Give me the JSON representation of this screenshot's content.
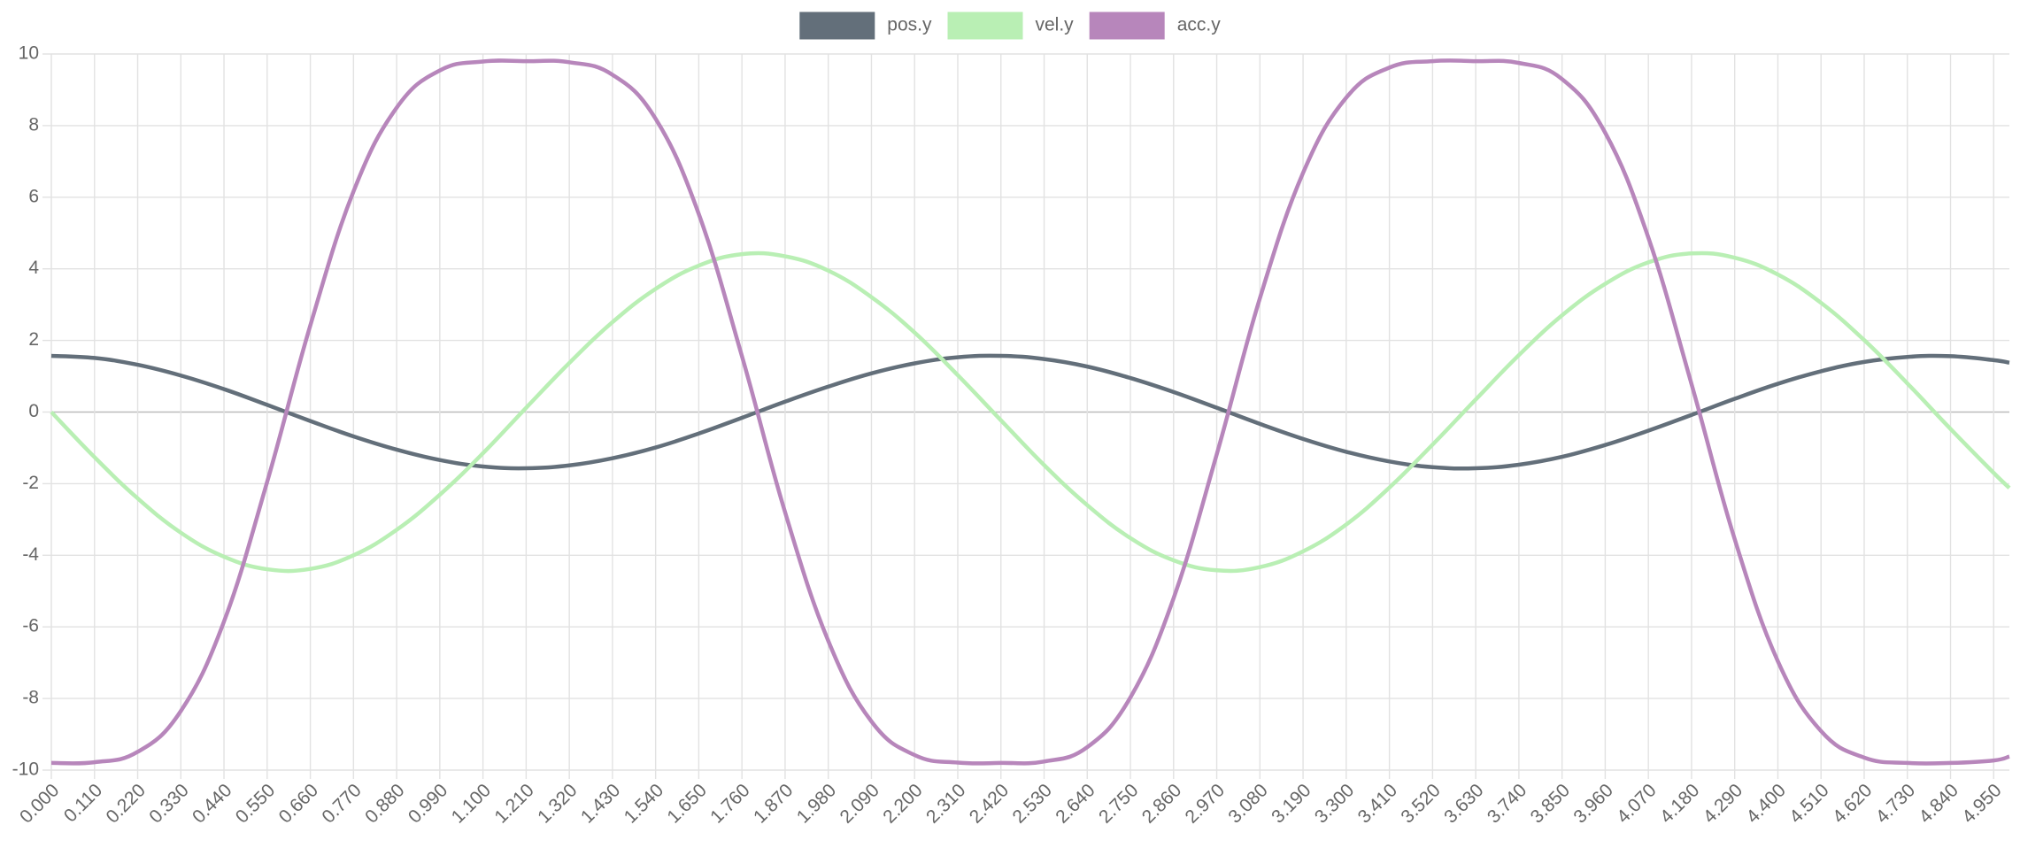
{
  "chart_data": {
    "type": "line",
    "legend": "top",
    "grid": true,
    "x": [
      0,
      0.11,
      0.22,
      0.33,
      0.44,
      0.55,
      0.66,
      0.77,
      0.88,
      0.99,
      1.1,
      1.21,
      1.32,
      1.43,
      1.54,
      1.65,
      1.76,
      1.87,
      1.98,
      2.09,
      2.2,
      2.31,
      2.42,
      2.53,
      2.64,
      2.75,
      2.86,
      2.97,
      3.08,
      3.19,
      3.3,
      3.41,
      3.52,
      3.63,
      3.74,
      3.85,
      3.96,
      4.07,
      4.18,
      4.29,
      4.4,
      4.51,
      4.62,
      4.73,
      4.84,
      4.95,
      4.99
    ],
    "xlim": [
      0,
      4.99
    ],
    "xticks": [
      {
        "value": 0,
        "label": "0.000"
      },
      {
        "value": 0.11,
        "label": "0.110"
      },
      {
        "value": 0.22,
        "label": "0.220"
      },
      {
        "value": 0.33,
        "label": "0.330"
      },
      {
        "value": 0.44,
        "label": "0.440"
      },
      {
        "value": 0.55,
        "label": "0.550"
      },
      {
        "value": 0.66,
        "label": "0.660"
      },
      {
        "value": 0.77,
        "label": "0.770"
      },
      {
        "value": 0.88,
        "label": "0.880"
      },
      {
        "value": 0.99,
        "label": "0.990"
      },
      {
        "value": 1.1,
        "label": "1.100"
      },
      {
        "value": 1.21,
        "label": "1.210"
      },
      {
        "value": 1.32,
        "label": "1.320"
      },
      {
        "value": 1.43,
        "label": "1.430"
      },
      {
        "value": 1.54,
        "label": "1.540"
      },
      {
        "value": 1.65,
        "label": "1.650"
      },
      {
        "value": 1.76,
        "label": "1.760"
      },
      {
        "value": 1.87,
        "label": "1.870"
      },
      {
        "value": 1.98,
        "label": "1.980"
      },
      {
        "value": 2.09,
        "label": "2.090"
      },
      {
        "value": 2.2,
        "label": "2.200"
      },
      {
        "value": 2.31,
        "label": "2.310"
      },
      {
        "value": 2.42,
        "label": "2.420"
      },
      {
        "value": 2.53,
        "label": "2.530"
      },
      {
        "value": 2.64,
        "label": "2.640"
      },
      {
        "value": 2.75,
        "label": "2.750"
      },
      {
        "value": 2.86,
        "label": "2.860"
      },
      {
        "value": 2.97,
        "label": "2.970"
      },
      {
        "value": 3.08,
        "label": "3.080"
      },
      {
        "value": 3.19,
        "label": "3.190"
      },
      {
        "value": 3.3,
        "label": "3.300"
      },
      {
        "value": 3.41,
        "label": "3.410"
      },
      {
        "value": 3.52,
        "label": "3.520"
      },
      {
        "value": 3.63,
        "label": "3.630"
      },
      {
        "value": 3.74,
        "label": "3.740"
      },
      {
        "value": 3.85,
        "label": "3.850"
      },
      {
        "value": 3.96,
        "label": "3.960"
      },
      {
        "value": 4.07,
        "label": "4.070"
      },
      {
        "value": 4.18,
        "label": "4.180"
      },
      {
        "value": 4.29,
        "label": "4.290"
      },
      {
        "value": 4.4,
        "label": "4.400"
      },
      {
        "value": 4.51,
        "label": "4.510"
      },
      {
        "value": 4.62,
        "label": "4.620"
      },
      {
        "value": 4.73,
        "label": "4.730"
      },
      {
        "value": 4.84,
        "label": "4.840"
      },
      {
        "value": 4.95,
        "label": "4.950"
      }
    ],
    "ylim": [
      -10,
      10
    ],
    "yticks": [
      10,
      8,
      6,
      4,
      2,
      0,
      -2,
      -4,
      -6,
      -8,
      -10
    ],
    "series": [
      {
        "name": "pos.y",
        "color": "#636f7a",
        "values": [
          1.57,
          1.51,
          1.32,
          1.02,
          0.64,
          0.2,
          -0.25,
          -0.68,
          -1.05,
          -1.34,
          -1.52,
          -1.57,
          -1.49,
          -1.29,
          -0.99,
          -0.6,
          -0.16,
          0.29,
          0.71,
          1.08,
          1.36,
          1.53,
          1.57,
          1.48,
          1.27,
          0.95,
          0.56,
          0.12,
          -0.33,
          -0.75,
          -1.11,
          -1.38,
          -1.54,
          -1.57,
          -1.47,
          -1.25,
          -0.92,
          -0.52,
          -0.08,
          0.37,
          0.79,
          1.14,
          1.4,
          1.54,
          1.56,
          1.45,
          1.38
        ]
      },
      {
        "name": "vel.y",
        "color": "#b9efb4",
        "values": [
          0,
          -1.26,
          -2.41,
          -3.37,
          -4.04,
          -4.39,
          -4.38,
          -4.0,
          -3.29,
          -2.31,
          -1.15,
          0.12,
          1.37,
          2.51,
          3.44,
          4.09,
          4.41,
          4.35,
          3.95,
          3.21,
          2.22,
          1.03,
          -0.23,
          -1.48,
          -2.6,
          -3.52,
          -4.14,
          -4.42,
          -4.33,
          -3.89,
          -3.14,
          -2.11,
          -0.91,
          0.35,
          1.59,
          2.7,
          3.58,
          4.18,
          4.43,
          4.31,
          3.84,
          3.05,
          2.01,
          0.8,
          -0.47,
          -1.7,
          -2.12
        ]
      },
      {
        "name": "acc.y",
        "color": "#b786bb",
        "values": [
          -9.8,
          -9.78,
          -9.49,
          -8.35,
          -5.85,
          -1.95,
          2.42,
          6.16,
          8.5,
          9.54,
          9.79,
          9.8,
          9.77,
          9.42,
          8.19,
          5.53,
          1.56,
          -2.8,
          -6.39,
          -8.64,
          -9.58,
          -9.79,
          -9.8,
          -9.76,
          -9.36,
          -7.97,
          -5.2,
          -1.18,
          3.18,
          6.68,
          8.78,
          9.62,
          9.8,
          9.8,
          9.75,
          9.3,
          7.8,
          4.87,
          0.78,
          -3.55,
          -6.96,
          -8.91,
          -9.65,
          -9.8,
          -9.8,
          -9.73,
          -9.62
        ]
      }
    ]
  }
}
